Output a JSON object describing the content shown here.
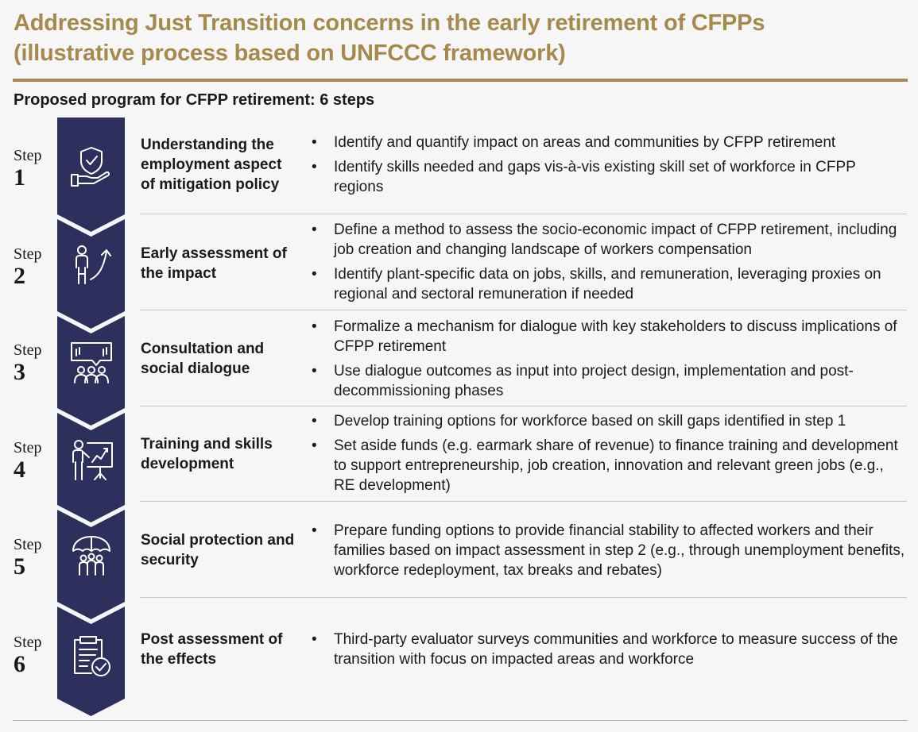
{
  "header": {
    "title_line1": "Addressing Just Transition concerns in the early retirement of CFPPs",
    "title_line2": "(illustrative process based on UNFCCC framework)",
    "subtitle": "Proposed program for CFPP retirement: 6 steps"
  },
  "colors": {
    "title": "#a58a4c",
    "chevron": "#2d2f5c",
    "icon_stroke": "#ffffff"
  },
  "steps": [
    {
      "word": "Step",
      "number": "1",
      "icon": "shield-hand-icon",
      "title": "Understanding the employment aspect of mitigation policy",
      "bullets": [
        "Identify and quantify impact on areas and communities by CFPP retirement",
        "Identify skills needed and gaps vis-à-vis existing skill set of workforce in CFPP regions"
      ]
    },
    {
      "word": "Step",
      "number": "2",
      "icon": "person-growth-arrow-icon",
      "title": "Early assessment of the impact",
      "bullets": [
        "Define a method to assess the socio-economic impact of CFPP retirement, including job creation and changing landscape of workers compensation",
        "Identify plant-specific data on jobs, skills, and remuneration, leveraging proxies on regional and sectoral remuneration if needed"
      ]
    },
    {
      "word": "Step",
      "number": "3",
      "icon": "group-dialogue-icon",
      "title": "Consultation and social dialogue",
      "bullets": [
        "Formalize a mechanism for dialogue with key stakeholders to discuss implications of CFPP retirement",
        "Use dialogue outcomes as input into project design, implementation and post-decommissioning phases"
      ]
    },
    {
      "word": "Step",
      "number": "4",
      "icon": "presenter-board-icon",
      "title": "Training and skills development",
      "bullets": [
        "Develop training options for workforce based on skill gaps identified in step 1",
        "Set aside funds (e.g. earmark share of revenue) to finance training and development to support entrepreneurship, job creation, innovation and relevant green jobs (e.g., RE development)"
      ]
    },
    {
      "word": "Step",
      "number": "5",
      "icon": "umbrella-family-icon",
      "title": "Social protection and security",
      "bullets": [
        "Prepare funding options to provide financial stability to affected workers and their families based on impact assessment in step 2 (e.g., through unemployment benefits, workforce redeployment, tax breaks and rebates)"
      ]
    },
    {
      "word": "Step",
      "number": "6",
      "icon": "clipboard-check-icon",
      "title": "Post assessment of the effects",
      "bullets": [
        "Third-party evaluator surveys communities and workforce to measure success of the transition with focus on impacted areas and workforce"
      ]
    }
  ]
}
